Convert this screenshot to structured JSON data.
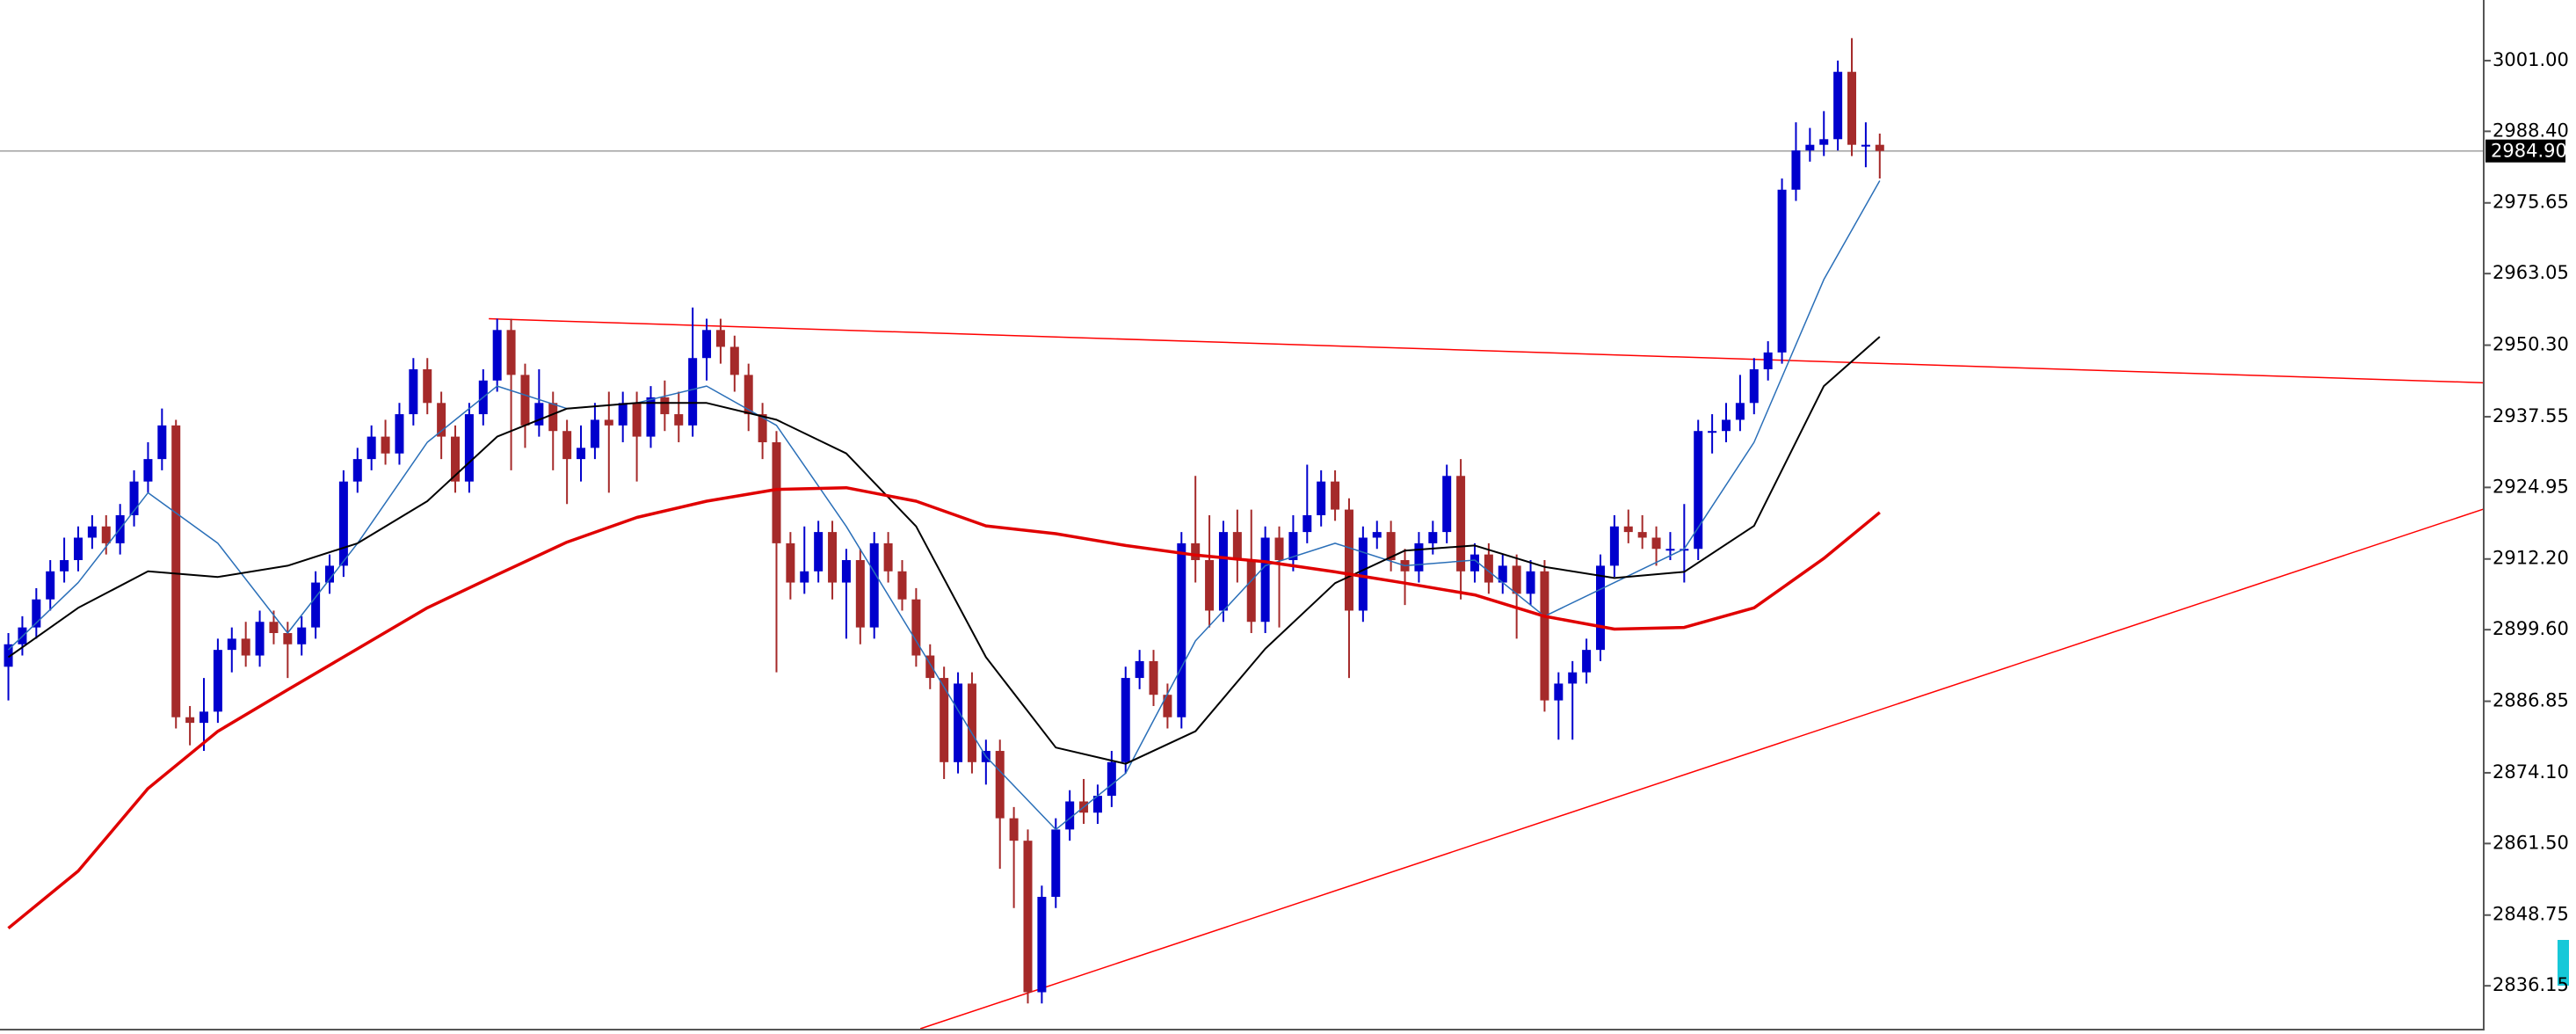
{
  "chart_data": {
    "type": "candlestick",
    "open": [
      2893,
      2897,
      2900,
      2905,
      2910,
      2912,
      2916,
      2918,
      2915,
      2920,
      2926,
      2930,
      2936,
      2884,
      2883,
      2885,
      2896,
      2898,
      2895,
      2901,
      2899,
      2897,
      2900,
      2908,
      2911,
      2926,
      2930,
      2934,
      2931,
      2938,
      2946,
      2940,
      2934,
      2926,
      2938,
      2944,
      2953,
      2945,
      2936,
      2940,
      2935,
      2930,
      2932,
      2937,
      2936,
      2940,
      2934,
      2941,
      2938,
      2936,
      2948,
      2953,
      2950,
      2945,
      2938,
      2933,
      2915,
      2908,
      2910,
      2917,
      2908,
      2912,
      2900,
      2915,
      2910,
      2905,
      2895,
      2891,
      2876,
      2890,
      2876,
      2878,
      2866,
      2862,
      2835,
      2852,
      2864,
      2869,
      2867,
      2870,
      2876,
      2891,
      2894,
      2888,
      2884,
      2915,
      2912,
      2903,
      2917,
      2912,
      2901,
      2916,
      2912,
      2917,
      2920,
      2926,
      2921,
      2903,
      2916,
      2917,
      2912,
      2910,
      2915,
      2917,
      2927,
      2910,
      2913,
      2908,
      2911,
      2906,
      2910,
      2887,
      2890,
      2892,
      2896,
      2911,
      2918,
      2917,
      2916,
      2914,
      2914,
      2914,
      2935,
      2935,
      2937,
      2940,
      2946,
      2949,
      2978,
      2985,
      2986,
      2987,
      2999,
      2986,
      2986
    ],
    "high": [
      2899,
      2902,
      2907,
      2912,
      2916,
      2918,
      2920,
      2920,
      2922,
      2928,
      2933,
      2939,
      2937,
      2886,
      2891,
      2898,
      2900,
      2901,
      2903,
      2903,
      2901,
      2902,
      2910,
      2913,
      2928,
      2932,
      2936,
      2937,
      2940,
      2948,
      2948,
      2942,
      2936,
      2940,
      2946,
      2955,
      2955,
      2947,
      2946,
      2942,
      2937,
      2936,
      2940,
      2942,
      2942,
      2942,
      2943,
      2944,
      2942,
      2957,
      2955,
      2955,
      2952,
      2947,
      2940,
      2935,
      2917,
      2918,
      2919,
      2919,
      2914,
      2914,
      2917,
      2917,
      2912,
      2907,
      2897,
      2893,
      2892,
      2892,
      2880,
      2880,
      2868,
      2864,
      2854,
      2866,
      2871,
      2873,
      2872,
      2878,
      2893,
      2896,
      2896,
      2890,
      2917,
      2927,
      2920,
      2919,
      2921,
      2921,
      2918,
      2918,
      2920,
      2929,
      2928,
      2928,
      2923,
      2918,
      2919,
      2919,
      2914,
      2917,
      2919,
      2929,
      2930,
      2915,
      2915,
      2913,
      2913,
      2912,
      2912,
      2892,
      2894,
      2898,
      2913,
      2920,
      2921,
      2920,
      2918,
      2917,
      2922,
      2937,
      2938,
      2940,
      2945,
      2948,
      2951,
      2980,
      2990,
      2989,
      2992,
      3001,
      3005,
      2990,
      2988
    ],
    "low": [
      2887,
      2895,
      2898,
      2903,
      2908,
      2910,
      2914,
      2913,
      2913,
      2918,
      2924,
      2928,
      2882,
      2879,
      2878,
      2883,
      2892,
      2893,
      2893,
      2897,
      2891,
      2895,
      2898,
      2906,
      2909,
      2924,
      2928,
      2929,
      2929,
      2936,
      2938,
      2930,
      2924,
      2924,
      2936,
      2942,
      2928,
      2932,
      2934,
      2928,
      2922,
      2926,
      2930,
      2924,
      2933,
      2926,
      2932,
      2935,
      2933,
      2934,
      2944,
      2947,
      2942,
      2935,
      2930,
      2892,
      2905,
      2906,
      2908,
      2905,
      2898,
      2897,
      2898,
      2908,
      2903,
      2893,
      2889,
      2873,
      2874,
      2874,
      2872,
      2857,
      2850,
      2833,
      2833,
      2850,
      2862,
      2865,
      2865,
      2868,
      2874,
      2889,
      2886,
      2882,
      2882,
      2908,
      2900,
      2901,
      2908,
      2899,
      2899,
      2900,
      2910,
      2915,
      2918,
      2919,
      2891,
      2901,
      2914,
      2910,
      2904,
      2908,
      2913,
      2915,
      2905,
      2908,
      2906,
      2906,
      2898,
      2904,
      2885,
      2880,
      2880,
      2890,
      2894,
      2909,
      2915,
      2914,
      2911,
      2912,
      2908,
      2912,
      2931,
      2933,
      2935,
      2938,
      2944,
      2947,
      2976,
      2983,
      2984,
      2985,
      2984,
      2982,
      2980
    ],
    "close": [
      2897,
      2900,
      2905,
      2910,
      2912,
      2916,
      2918,
      2915,
      2920,
      2926,
      2930,
      2936,
      2884,
      2883,
      2885,
      2896,
      2898,
      2895,
      2901,
      2899,
      2897,
      2900,
      2908,
      2911,
      2926,
      2930,
      2934,
      2931,
      2938,
      2946,
      2940,
      2934,
      2926,
      2938,
      2944,
      2953,
      2945,
      2936,
      2940,
      2935,
      2930,
      2932,
      2937,
      2936,
      2940,
      2934,
      2941,
      2938,
      2936,
      2948,
      2953,
      2950,
      2945,
      2938,
      2933,
      2915,
      2908,
      2910,
      2917,
      2908,
      2912,
      2900,
      2915,
      2910,
      2905,
      2895,
      2891,
      2876,
      2890,
      2876,
      2878,
      2866,
      2862,
      2835,
      2852,
      2864,
      2869,
      2867,
      2870,
      2876,
      2891,
      2894,
      2888,
      2884,
      2915,
      2912,
      2903,
      2917,
      2912,
      2901,
      2916,
      2912,
      2917,
      2920,
      2926,
      2921,
      2903,
      2916,
      2917,
      2912,
      2910,
      2915,
      2917,
      2927,
      2910,
      2913,
      2908,
      2911,
      2906,
      2910,
      2887,
      2890,
      2892,
      2896,
      2911,
      2918,
      2917,
      2916,
      2914,
      2914,
      2914,
      2935,
      2935,
      2937,
      2940,
      2946,
      2949,
      2978,
      2985,
      2986,
      2987,
      2999,
      2986,
      2986,
      2984.9
    ],
    "up_color": "#0000cd",
    "down_color": "#a52a2a",
    "moving_averages": [
      {
        "color": "#2a6fb8",
        "width": 1.5,
        "x": [
          0,
          5,
          10,
          15,
          20,
          25,
          30,
          35,
          40,
          45,
          50,
          55,
          60,
          65,
          70,
          75,
          80,
          85,
          90,
          95,
          100,
          105,
          110,
          115,
          120,
          125,
          130,
          134
        ],
        "values": [
          2896,
          2908,
          2924,
          2915,
          2899,
          2915,
          2933,
          2943,
          2939,
          2940,
          2943,
          2936,
          2918,
          2897.6,
          2877,
          2864,
          2874,
          2897.6,
          2911,
          2915,
          2911,
          2912,
          2902,
          2908,
          2914,
          2933,
          2962,
          2979.6
        ]
      },
      {
        "color": "#000000",
        "width": 2,
        "x": [
          0,
          5,
          10,
          15,
          20,
          25,
          30,
          35,
          40,
          45,
          50,
          55,
          60,
          65,
          70,
          75,
          80,
          85,
          90,
          95,
          100,
          105,
          110,
          115,
          120,
          125,
          130,
          134
        ],
        "values": [
          2894.7,
          2903.5,
          2910,
          2909,
          2911,
          2915,
          2922.5,
          2934,
          2939,
          2940,
          2940,
          2937,
          2931,
          2918,
          2894.7,
          2878.6,
          2875.7,
          2881.5,
          2896.2,
          2907.9,
          2913.7,
          2914.6,
          2910.8,
          2908.8,
          2909.9,
          2918.1,
          2943,
          2951.8
        ]
      },
      {
        "color": "#e00000",
        "width": 3.5,
        "x": [
          0,
          5,
          10,
          15,
          20,
          25,
          30,
          35,
          40,
          45,
          50,
          55,
          60,
          65,
          70,
          75,
          80,
          85,
          90,
          95,
          100,
          105,
          110,
          115,
          120,
          125,
          130,
          134
        ],
        "values": [
          2846.4,
          2856.6,
          2871.3,
          2881.5,
          2888.9,
          2896.2,
          2903.5,
          2909.4,
          2915.2,
          2919.6,
          2922.5,
          2924.6,
          2924.9,
          2922.5,
          2918.1,
          2916.7,
          2914.6,
          2912.9,
          2911.7,
          2909.9,
          2907.9,
          2905.8,
          2902,
          2899.7,
          2900,
          2903.5,
          2912.3,
          2920.5
        ]
      }
    ],
    "trend_lines": [
      {
        "color": "#ff0000",
        "x": [
          34.4,
          177.3
        ],
        "y": [
          2955,
          2943.6
        ]
      },
      {
        "color": "#ff0000",
        "x": [
          65.3,
          177.3
        ],
        "y": [
          2828.5,
          2921.1
        ]
      }
    ],
    "last_price": {
      "value": 2984.9,
      "label": "2984.90"
    },
    "ylim": [
      2828.5,
      3011.8
    ],
    "yticks": [
      {
        "value": 3001,
        "label": "3001.00"
      },
      {
        "value": 2988.4,
        "label": "2988.40"
      },
      {
        "value": 2975.65,
        "label": "2975.65"
      },
      {
        "value": 2963.05,
        "label": "2963.05"
      },
      {
        "value": 2950.3,
        "label": "2950.30"
      },
      {
        "value": 2937.55,
        "label": "2937.55"
      },
      {
        "value": 2924.95,
        "label": "2924.95"
      },
      {
        "value": 2912.2,
        "label": "2912.20"
      },
      {
        "value": 2899.6,
        "label": "2899.60"
      },
      {
        "value": 2886.85,
        "label": "2886.85"
      },
      {
        "value": 2874.1,
        "label": "2874.10"
      },
      {
        "value": 2861.5,
        "label": "2861.50"
      },
      {
        "value": 2848.75,
        "label": "2848.75"
      },
      {
        "value": 2836.15,
        "label": "2836.15"
      }
    ]
  }
}
